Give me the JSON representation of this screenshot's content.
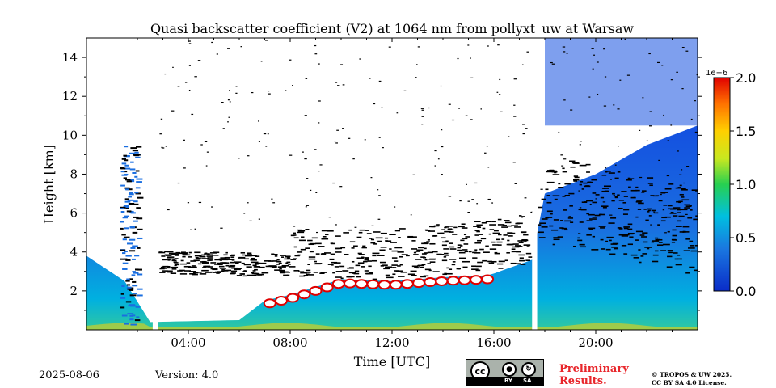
{
  "chart_data": {
    "type": "heatmap",
    "title": "Quasi backscatter coefficient (V2) at 1064 nm from pollyxt_uw at Warsaw",
    "xlabel": "Time [UTC]",
    "ylabel": "Height [km]",
    "x_range_hours": [
      0,
      24
    ],
    "y_range_km": [
      0,
      15
    ],
    "x_ticks": [
      "04:00",
      "08:00",
      "12:00",
      "16:00",
      "20:00"
    ],
    "x_tick_hours": [
      4,
      8,
      12,
      16,
      20
    ],
    "y_ticks": [
      "2",
      "4",
      "6",
      "8",
      "10",
      "12",
      "14"
    ],
    "y_tick_values": [
      2,
      4,
      6,
      8,
      10,
      12,
      14
    ],
    "colorbar": {
      "range": [
        0.0,
        2.0
      ],
      "exponent_label": "1e−6",
      "tick_labels": [
        "0.0",
        "0.5",
        "1.0",
        "1.5",
        "2.0"
      ],
      "tick_values": [
        0.0,
        0.5,
        1.0,
        1.5,
        2.0
      ],
      "colormap": "jet"
    },
    "data_gaps_hours": [
      [
        2.6,
        2.8
      ],
      [
        17.5,
        17.7
      ]
    ],
    "aerosol_layer_top_km": [
      [
        0.0,
        3.8
      ],
      [
        1.5,
        2.5
      ],
      [
        2.5,
        0.4
      ],
      [
        6.0,
        0.5
      ],
      [
        7.0,
        1.5
      ],
      [
        8.0,
        1.8
      ],
      [
        10.0,
        2.6
      ],
      [
        12.0,
        2.5
      ],
      [
        14.0,
        2.7
      ],
      [
        15.8,
        2.8
      ],
      [
        17.5,
        3.6
      ],
      [
        18.0,
        7.0
      ],
      [
        20.0,
        8.0
      ],
      [
        22.0,
        9.5
      ],
      [
        24.0,
        10.5
      ]
    ],
    "high_cloud_base_km": [
      [
        0.0,
        3.0
      ],
      [
        12.0,
        2.6
      ],
      [
        17.0,
        3.3
      ],
      [
        18.0,
        4.5
      ],
      [
        24.0,
        2.8
      ]
    ]
  },
  "footer": {
    "date": "2025-08-06",
    "version": "Version: 4.0",
    "preliminary_line1": "Preliminary",
    "preliminary_line2": "Results.",
    "copyright_line1": "© TROPOS & UW 2025.",
    "copyright_line2": "CC BY SA 4.0 License.",
    "license_badge": {
      "cc": "cc",
      "by": "BY",
      "sa": "SA"
    }
  }
}
